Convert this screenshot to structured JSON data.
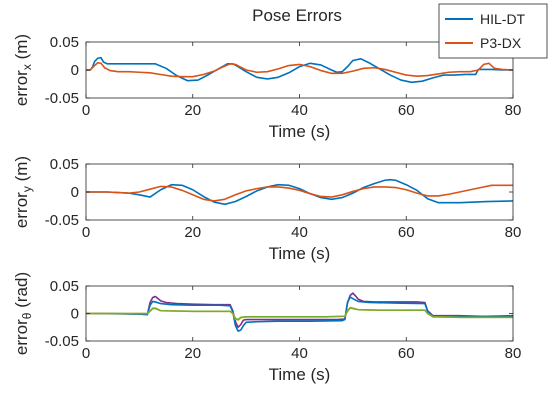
{
  "figure": {
    "title": "Pose Errors",
    "legend": {
      "placement": "top-right",
      "entries": [
        {
          "name": "HIL-DT",
          "color": "#0072BD"
        },
        {
          "name": "P3-DX",
          "color": "#D95319"
        }
      ]
    }
  },
  "chart_data": [
    {
      "type": "line",
      "title": "Pose Errors",
      "xlabel": "Time (s)",
      "ylabel_main": "error",
      "ylabel_sub": "x",
      "ylabel_unit": " (m)",
      "xlim": [
        0,
        80
      ],
      "ylim": [
        -0.05,
        0.05
      ],
      "xticks": [
        0,
        20,
        40,
        60,
        80
      ],
      "yticks": [
        -0.05,
        0,
        0.05
      ],
      "ytick_labels": [
        "-0.05",
        "0",
        "0.05"
      ],
      "grid": false,
      "series": [
        {
          "name": "HIL-DT",
          "color": "#0072BD",
          "x": [
            0,
            0.8,
            1.2,
            1.6,
            2.2,
            2.8,
            3.3,
            4,
            6,
            10,
            13,
            15,
            17,
            19,
            21,
            23,
            25,
            26.5,
            27.5,
            28.5,
            30,
            32,
            34,
            36,
            38,
            40,
            42,
            44,
            46,
            47,
            48,
            49,
            50,
            51.5,
            53,
            55,
            57,
            59,
            61,
            63,
            65,
            67,
            69,
            71,
            72.5,
            73,
            73.5,
            74,
            76,
            78,
            80
          ],
          "y": [
            0,
            0,
            0.005,
            0.015,
            0.021,
            0.022,
            0.014,
            0.011,
            0.011,
            0.011,
            0.011,
            0.003,
            -0.01,
            -0.019,
            -0.018,
            -0.008,
            0.003,
            0.011,
            0.011,
            0.006,
            -0.003,
            -0.013,
            -0.016,
            -0.013,
            -0.005,
            0.006,
            0.012,
            0.009,
            0,
            -0.004,
            -0.003,
            0.006,
            0.017,
            0.02,
            0.013,
            0.002,
            -0.009,
            -0.018,
            -0.022,
            -0.02,
            -0.014,
            -0.009,
            -0.009,
            -0.008,
            -0.008,
            -0.008,
            0.001,
            0.001,
            0.001,
            0,
            0
          ]
        },
        {
          "name": "P3-DX",
          "color": "#D95319",
          "x": [
            0,
            0.8,
            1.5,
            2.2,
            2.8,
            3.5,
            4.5,
            6,
            8,
            10,
            12,
            14,
            16,
            18,
            20,
            22,
            24,
            26,
            27,
            28,
            30,
            32,
            34,
            36,
            38,
            40,
            42,
            44,
            46,
            48,
            50,
            52,
            54,
            56,
            58,
            60,
            62,
            64,
            66,
            68,
            70,
            72,
            73.5,
            74.5,
            75.5,
            76.5,
            78,
            80
          ],
          "y": [
            0,
            0,
            0.007,
            0.013,
            0.012,
            0.004,
            -0.001,
            -0.003,
            -0.003,
            -0.004,
            -0.005,
            -0.008,
            -0.011,
            -0.012,
            -0.012,
            -0.008,
            -0.002,
            0.007,
            0.011,
            0.01,
            0,
            -0.004,
            -0.003,
            0.002,
            0.008,
            0.01,
            0.006,
            -0.001,
            -0.006,
            -0.006,
            -0.002,
            0.003,
            0.004,
            0.001,
            -0.004,
            -0.009,
            -0.011,
            -0.01,
            -0.007,
            -0.004,
            -0.003,
            -0.003,
            0,
            0.01,
            0.012,
            0.003,
            0.001,
            0
          ]
        }
      ]
    },
    {
      "type": "line",
      "xlabel": "Time (s)",
      "ylabel_main": "error",
      "ylabel_sub": "y",
      "ylabel_unit": " (m)",
      "xlim": [
        0,
        80
      ],
      "ylim": [
        -0.05,
        0.05
      ],
      "xticks": [
        0,
        20,
        40,
        60,
        80
      ],
      "yticks": [
        -0.05,
        0,
        0.05
      ],
      "ytick_labels": [
        "-0.05",
        "0",
        "0.05"
      ],
      "grid": false,
      "series": [
        {
          "name": "HIL-DT",
          "color": "#0072BD",
          "x": [
            0,
            4,
            8,
            10,
            12,
            14,
            16,
            18,
            20,
            22,
            24,
            26,
            28,
            30,
            32,
            34,
            36,
            38,
            40,
            42,
            44,
            46,
            48,
            50,
            52,
            54,
            56,
            57,
            58,
            60,
            62,
            64,
            66,
            70,
            75,
            80
          ],
          "y": [
            0,
            0,
            -0.002,
            -0.005,
            -0.009,
            0.004,
            0.013,
            0.012,
            0.004,
            -0.008,
            -0.018,
            -0.022,
            -0.017,
            -0.008,
            0.002,
            0.009,
            0.013,
            0.012,
            0.006,
            -0.003,
            -0.01,
            -0.013,
            -0.01,
            -0.002,
            0.008,
            0.015,
            0.021,
            0.022,
            0.021,
            0.013,
            0.003,
            -0.012,
            -0.019,
            -0.019,
            -0.017,
            -0.016
          ]
        },
        {
          "name": "P3-DX",
          "color": "#D95319",
          "x": [
            0,
            4,
            6,
            8,
            10,
            12,
            14,
            16,
            18,
            20,
            22,
            24,
            26,
            28,
            30,
            32,
            34,
            36,
            38,
            40,
            42,
            44,
            46,
            48,
            50,
            52,
            54,
            56,
            58,
            60,
            62,
            64,
            66,
            68,
            70,
            72,
            74,
            76,
            80
          ],
          "y": [
            0,
            0,
            -0.001,
            -0.002,
            0,
            0.005,
            0.01,
            0.009,
            0.003,
            -0.005,
            -0.013,
            -0.016,
            -0.013,
            -0.005,
            0.002,
            0.006,
            0.009,
            0.009,
            0.007,
            0.003,
            -0.003,
            -0.008,
            -0.009,
            -0.005,
            0.001,
            0.006,
            0.009,
            0.009,
            0.008,
            0.004,
            -0.002,
            -0.007,
            -0.007,
            -0.004,
            0,
            0.004,
            0.008,
            0.012,
            0.012
          ]
        }
      ]
    },
    {
      "type": "line",
      "xlabel": "Time (s)",
      "ylabel_main": "error",
      "ylabel_sub": "θ",
      "ylabel_unit": " (rad)",
      "xlim": [
        0,
        80
      ],
      "ylim": [
        -0.05,
        0.05
      ],
      "xticks": [
        0,
        20,
        40,
        60,
        80
      ],
      "yticks": [
        -0.05,
        0,
        0.05
      ],
      "ytick_labels": [
        "-0.05",
        "0",
        "0.05"
      ],
      "grid": false,
      "series": [
        {
          "color": "#7E2F8E",
          "x": [
            0,
            5,
            10,
            11.5,
            12,
            12.5,
            13,
            13.5,
            14,
            15,
            17,
            20,
            24,
            27,
            27.5,
            28,
            28.5,
            29,
            29.5,
            30,
            31,
            33,
            36,
            40,
            44,
            47,
            48.5,
            49,
            49.5,
            50,
            50.5,
            51,
            52,
            54,
            58,
            62,
            63.5,
            64,
            65,
            67,
            70,
            74,
            78,
            80
          ],
          "y": [
            0,
            0,
            -0.001,
            -0.002,
            0.02,
            0.029,
            0.031,
            0.027,
            0.023,
            0.02,
            0.018,
            0.017,
            0.016,
            0.016,
            0.005,
            -0.015,
            -0.025,
            -0.02,
            -0.012,
            -0.011,
            -0.011,
            -0.011,
            -0.011,
            -0.011,
            -0.011,
            -0.011,
            -0.01,
            0.02,
            0.033,
            0.037,
            0.032,
            0.026,
            0.022,
            0.021,
            0.021,
            0.021,
            0.02,
            0.005,
            -0.004,
            -0.004,
            -0.004,
            -0.005,
            -0.005,
            -0.004
          ]
        },
        {
          "color": "#0072BD",
          "x": [
            0,
            10,
            11.5,
            12,
            12.5,
            13,
            14,
            16,
            20,
            25,
            27,
            27.5,
            28,
            28.5,
            29,
            29.5,
            30,
            32,
            36,
            42,
            48,
            48.5,
            49,
            49.5,
            50,
            51,
            53,
            58,
            63.5,
            64,
            65,
            70,
            75,
            80
          ],
          "y": [
            0,
            -0.001,
            -0.002,
            0.015,
            0.022,
            0.021,
            0.018,
            0.016,
            0.015,
            0.015,
            0.014,
            0.003,
            -0.022,
            -0.032,
            -0.03,
            -0.022,
            -0.016,
            -0.015,
            -0.014,
            -0.014,
            -0.013,
            -0.011,
            0.02,
            0.03,
            0.027,
            0.022,
            0.02,
            0.019,
            0.018,
            0.004,
            -0.005,
            -0.005,
            -0.005,
            -0.004
          ]
        },
        {
          "color": "#EDB120",
          "x": [
            0,
            10,
            11.5,
            12,
            12.5,
            13,
            14,
            20,
            27,
            27.5,
            28,
            28.5,
            29,
            30,
            35,
            45,
            48.5,
            49,
            49.5,
            50,
            51,
            55,
            63.5,
            64,
            65,
            70,
            80
          ],
          "y": [
            0,
            0,
            0,
            0.005,
            0.01,
            0.01,
            0.005,
            0.004,
            0.004,
            0,
            -0.01,
            -0.012,
            -0.008,
            -0.006,
            -0.006,
            -0.006,
            -0.005,
            0.005,
            0.011,
            0.01,
            0.007,
            0.006,
            0.006,
            0,
            -0.006,
            -0.007,
            -0.007
          ]
        },
        {
          "color": "#77AC30",
          "x": [
            0,
            10,
            11.5,
            12,
            12.5,
            13,
            14,
            20,
            27,
            27.5,
            28,
            28.5,
            29,
            30,
            35,
            45,
            48.5,
            49,
            49.5,
            50,
            51,
            55,
            63.5,
            64,
            65,
            70,
            80
          ],
          "y": [
            0,
            0,
            0,
            0.004,
            0.009,
            0.009,
            0.005,
            0.004,
            0.004,
            0,
            -0.009,
            -0.011,
            -0.007,
            -0.006,
            -0.006,
            -0.006,
            -0.005,
            0.004,
            0.01,
            0.009,
            0.007,
            0.006,
            0.006,
            0,
            -0.006,
            -0.007,
            -0.007
          ]
        }
      ]
    }
  ]
}
